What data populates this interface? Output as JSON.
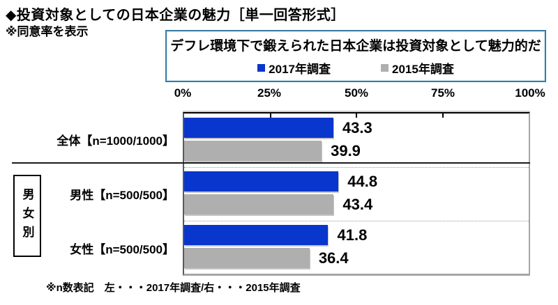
{
  "page": {
    "title": "◆投資対象としての日本企業の魅力［単一回答形式］",
    "subtitle": "※同意率を表示",
    "footnote": "※n数表記　左・・・2017年調査/右・・・2015年調査"
  },
  "question_box": {
    "question": "デフレ環境下で鍛えられた日本企業は投資対象として魅力的だ",
    "legend": [
      {
        "label": "2017年調査",
        "color": "#0936CC"
      },
      {
        "label": "2015年調査",
        "color": "#AFAFAF"
      }
    ]
  },
  "group_panel": {
    "label": "男女別"
  },
  "colors": {
    "bar_2017": "#0936CC",
    "bar_2015": "#AFAFAF",
    "question_box_border": "#3A7CA5"
  },
  "chart_data": {
    "type": "bar",
    "orientation": "horizontal",
    "title": "デフレ環境下で鍛えられた日本企業は投資対象として魅力的だ",
    "categories": [
      "全体【n=1000/1000】",
      "男性【n=500/500】",
      "女性【n=500/500】"
    ],
    "series": [
      {
        "name": "2017年調査",
        "color": "#0936CC",
        "values": [
          43.3,
          44.8,
          41.8
        ]
      },
      {
        "name": "2015年調査",
        "color": "#AFAFAF",
        "values": [
          39.9,
          43.4,
          36.4
        ]
      }
    ],
    "xlim": [
      0,
      100
    ],
    "x_ticks": [
      "0%",
      "25%",
      "50%",
      "75%",
      "100%"
    ],
    "value_labels_shown": true,
    "legend_position": "top",
    "grid": "category-dotted-separators"
  }
}
